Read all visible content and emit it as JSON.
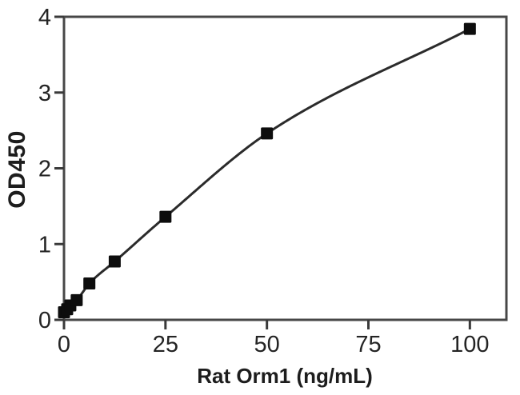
{
  "chart_data": {
    "type": "line",
    "title": "",
    "xlabel": "Rat Orm1 (ng/mL)",
    "ylabel": "OD450",
    "x": [
      0,
      0.78,
      1.56,
      3.13,
      6.25,
      12.5,
      25,
      50,
      100
    ],
    "y": [
      0.1,
      0.14,
      0.19,
      0.26,
      0.48,
      0.77,
      1.36,
      2.46,
      3.84
    ],
    "x_ticks": [
      0,
      25,
      50,
      75,
      100
    ],
    "y_ticks": [
      0,
      1,
      2,
      3,
      4
    ],
    "xlim": [
      0,
      109
    ],
    "ylim": [
      0,
      4
    ],
    "grid": false,
    "legend_position": "none",
    "marker": "filled-square",
    "colors": {
      "curve": "#2b2b2b",
      "marker": "#0d0d0d",
      "axis": "#474747",
      "tick": "#3a3a3a",
      "text": "#242424",
      "background": "#ffffff"
    }
  }
}
